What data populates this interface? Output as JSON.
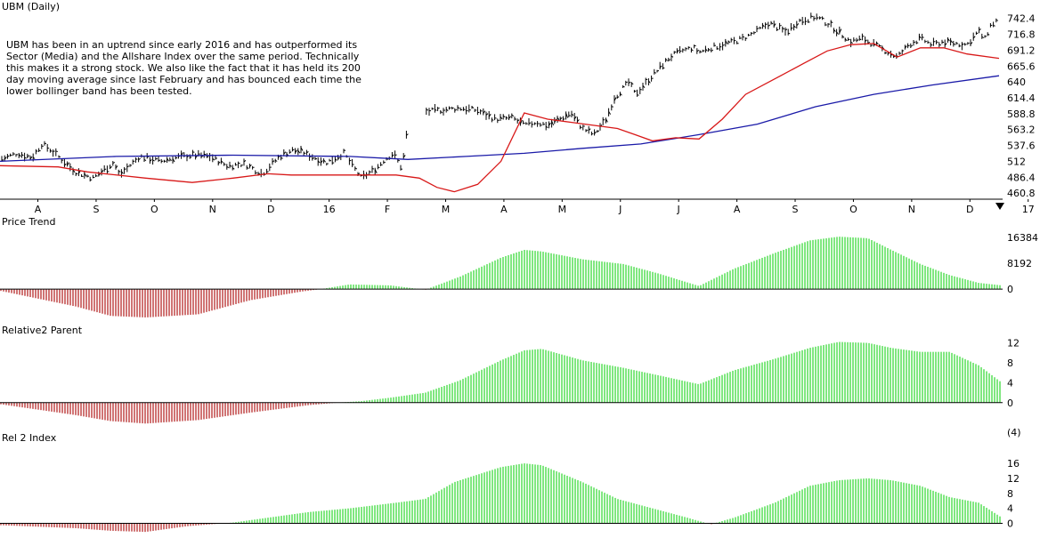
{
  "colors": {
    "price_bars": "#000000",
    "ma200": "#1a1aa8",
    "lower_band": "#d81818",
    "positive": "#2bd72b",
    "negative": "#b01818"
  },
  "chart_data": [
    {
      "type": "line",
      "title": "UBM (Daily)",
      "annotation": "UBM has been in an uptrend since early 2016 and has outperformed its Sector (Media) and the Allshare Index over the same period. Technically this makes it a strong stock. We also like the fact that it has held its 200 day moving average since last February and has bounced each time the lower bollinger band has been tested.",
      "x_tick_labels": [
        "A",
        "S",
        "O",
        "N",
        "D",
        "16",
        "F",
        "M",
        "A",
        "M",
        "J",
        "J",
        "A",
        "S",
        "O",
        "N",
        "D",
        "17"
      ],
      "y_tick_labels": [
        "742.4",
        "716.8",
        "691.2",
        "665.6",
        "640",
        "614.4",
        "588.8",
        "563.2",
        "537.6",
        "512",
        "486.4",
        "460.8"
      ],
      "ylim": [
        451,
        752
      ],
      "series": [
        {
          "role": "price",
          "x": [
            0,
            0.3,
            0.55,
            0.72,
            0.85,
            1.0,
            1.3,
            1.6,
            1.95,
            2.05,
            2.4,
            2.75,
            3.0,
            3.3,
            3.6,
            3.9,
            4.2,
            4.5,
            4.8,
            5.0,
            5.15,
            5.35,
            5.6,
            5.9,
            6.2,
            6.45,
            6.6,
            6.75,
            6.9,
            7.0,
            7.1,
            7.3,
            7.6,
            7.9,
            8.2,
            8.5,
            8.8,
            9.0,
            9.2,
            9.4,
            9.6,
            9.8,
            10.0,
            10.2,
            10.4,
            10.55,
            10.7,
            10.8,
            10.9,
            11.0,
            11.1,
            11.3,
            11.5,
            11.7,
            11.9,
            12.0,
            12.2,
            12.4,
            12.6,
            12.8,
            13.0,
            13.2,
            13.5,
            13.7,
            14.0,
            14.2,
            14.4,
            14.6,
            14.8,
            15.0,
            15.2,
            15.4,
            15.6,
            15.8,
            16.0,
            16.2,
            16.4,
            16.6,
            16.8,
            16.9,
            17.0,
            17.15
          ],
          "y": [
            515,
            525,
            518,
            540,
            532,
            520,
            495,
            485,
            510,
            490,
            520,
            512,
            518,
            522,
            520,
            505,
            508,
            492,
            520,
            530,
            528,
            520,
            510,
            525,
            485,
            500,
            515,
            525,
            500,
            570,
            588,
            592,
            595,
            598,
            594,
            580,
            582,
            570,
            575,
            570,
            580,
            590,
            565,
            555,
            580,
            615,
            630,
            640,
            620,
            630,
            640,
            660,
            680,
            690,
            695,
            688,
            695,
            700,
            705,
            712,
            722,
            735,
            720,
            738,
            745,
            735,
            720,
            705,
            710,
            700,
            690,
            680,
            700,
            710,
            700,
            705,
            702,
            700,
            722,
            708,
            730,
            742
          ]
        },
        {
          "role": "200-day moving average",
          "x": [
            0,
            2,
            4,
            6,
            7,
            8,
            9,
            10,
            11,
            12,
            13,
            14,
            15,
            16,
            17.15
          ],
          "y": [
            512,
            520,
            522,
            520,
            515,
            520,
            525,
            533,
            540,
            555,
            572,
            600,
            620,
            635,
            650
          ]
        },
        {
          "role": "lower bollinger band",
          "x": [
            0,
            1,
            1.5,
            2.5,
            3.3,
            4.0,
            4.6,
            5.0,
            6.0,
            6.8,
            7.2,
            7.5,
            7.8,
            8.2,
            8.6,
            9.0,
            9.4,
            9.8,
            10.2,
            10.6,
            10.9,
            11.2,
            11.6,
            12.0,
            12.4,
            12.8,
            13.4,
            13.8,
            14.2,
            14.6,
            15.0,
            15.4,
            15.8,
            16.2,
            16.6,
            17.15
          ],
          "y": [
            505,
            503,
            495,
            485,
            478,
            485,
            492,
            490,
            490,
            490,
            485,
            470,
            463,
            475,
            512,
            590,
            580,
            575,
            570,
            565,
            555,
            545,
            550,
            548,
            580,
            620,
            650,
            670,
            690,
            700,
            702,
            680,
            695,
            695,
            685,
            678
          ]
        }
      ]
    },
    {
      "type": "bar",
      "title": "Price Trend",
      "y_tick_labels": [
        "16384",
        "8192",
        "0"
      ],
      "ylim": [
        -9000,
        19000
      ],
      "x": [
        0,
        1.3,
        1.9,
        2.5,
        3.4,
        4.3,
        5.2,
        5.5,
        6.0,
        6.7,
        7.3,
        7.9,
        8.6,
        9.0,
        9.3,
        10.0,
        10.7,
        11.3,
        12.0,
        12.6,
        13.3,
        13.9,
        14.4,
        14.9,
        15.3,
        15.8,
        16.3,
        16.8,
        17.2
      ],
      "values": [
        -500,
        -5500,
        -8500,
        -9000,
        -8000,
        -3500,
        -700,
        0,
        1500,
        1200,
        -200,
        4000,
        10000,
        12500,
        12000,
        9500,
        8000,
        5000,
        1000,
        6500,
        11500,
        15500,
        16700,
        16200,
        12500,
        8000,
        4500,
        2000,
        1200
      ]
    },
    {
      "type": "bar",
      "title": "Relative2 Parent",
      "y_tick_labels": [
        "12",
        "8",
        "4",
        "0"
      ],
      "ylim": [
        -4.5,
        13
      ],
      "x": [
        0,
        1.3,
        1.9,
        2.5,
        3.4,
        4.3,
        5.3,
        5.8,
        6.2,
        6.7,
        7.3,
        7.9,
        8.6,
        9.0,
        9.3,
        10.0,
        10.7,
        11.3,
        12.0,
        12.6,
        13.3,
        13.9,
        14.4,
        14.9,
        15.3,
        15.8,
        16.3,
        16.8,
        17.2
      ],
      "values": [
        -0.3,
        -2.5,
        -3.7,
        -4.2,
        -3.5,
        -2.0,
        -0.5,
        0,
        0.3,
        1.0,
        2.0,
        4.5,
        8.5,
        10.5,
        10.8,
        8.5,
        7.0,
        5.5,
        3.7,
        6.5,
        8.8,
        11.0,
        12.2,
        12.0,
        11.0,
        10.2,
        10.2,
        7.5,
        4.0
      ]
    },
    {
      "type": "bar",
      "title": "Rel 2 Index",
      "y_tick_labels": [
        "(4)",
        "16",
        "12",
        "8",
        "4",
        "0"
      ],
      "ylim": [
        -2.5,
        21
      ],
      "x": [
        0,
        1.3,
        1.9,
        2.5,
        3.2,
        4.0,
        4.6,
        5.3,
        6.0,
        6.8,
        7.3,
        7.8,
        8.6,
        9.0,
        9.3,
        10.0,
        10.6,
        11.2,
        11.8,
        12.2,
        12.6,
        13.3,
        13.9,
        14.4,
        14.9,
        15.3,
        15.8,
        16.3,
        16.8,
        17.2
      ],
      "values": [
        -0.5,
        -1.3,
        -2.0,
        -2.3,
        -0.8,
        0.2,
        1.5,
        3.0,
        4.0,
        5.5,
        6.5,
        11.0,
        15.0,
        16.0,
        15.5,
        11.0,
        6.5,
        4.0,
        1.5,
        -0.3,
        1.5,
        5.5,
        10.0,
        11.5,
        12.0,
        11.5,
        10.0,
        7.0,
        5.5,
        1.5
      ]
    }
  ]
}
